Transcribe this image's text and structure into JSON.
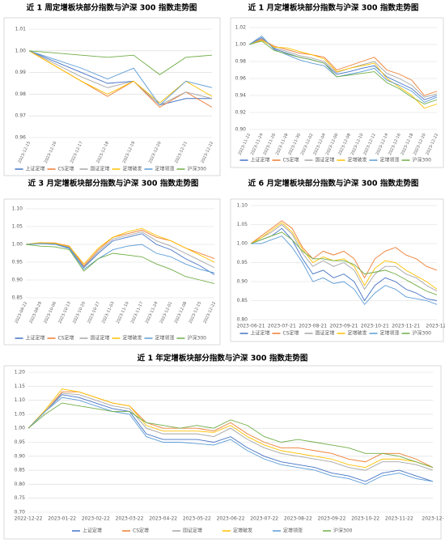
{
  "chart_data": [
    {
      "type": "line",
      "title": "近 1 周定增板块部分指数与沪深 300 指数走势图",
      "categories": [
        "2023-12-15",
        "2023-12-16",
        "2023-12-17",
        "2023-12-18",
        "2023-12-19",
        "2023-12-20",
        "2023-12-21",
        "2023-12-22"
      ],
      "ylim": [
        0.96,
        1.01
      ],
      "yticks": [
        0.96,
        0.97,
        0.98,
        0.99,
        {
          "value": 1,
          "label": "1.00"
        },
        1.01
      ],
      "grid": true,
      "series": [
        {
          "name": "上证定增",
          "color": "#4472c4",
          "values": [
            1.0,
            0.995,
            0.99,
            0.985,
            0.986,
            0.975,
            0.978,
            0.978
          ]
        },
        {
          "name": "CS定增",
          "color": "#ed7d31",
          "values": [
            1.0,
            0.993,
            0.986,
            0.979,
            0.986,
            0.974,
            0.981,
            0.974
          ]
        },
        {
          "name": "国证定增",
          "color": "#a5a5a5",
          "values": [
            1.0,
            0.994,
            0.988,
            0.983,
            0.986,
            0.975,
            0.981,
            0.978
          ]
        },
        {
          "name": "定增破发",
          "color": "#ffc000",
          "values": [
            1.0,
            0.993,
            0.986,
            0.98,
            0.986,
            0.976,
            0.986,
            0.979
          ]
        },
        {
          "name": "定增领涨",
          "color": "#5b9bd5",
          "values": [
            1.0,
            0.996,
            0.992,
            0.987,
            0.992,
            0.975,
            0.986,
            0.983
          ]
        },
        {
          "name": "沪深300",
          "color": "#70ad47",
          "values": [
            1.0,
            0.999,
            0.998,
            0.997,
            0.998,
            0.989,
            0.997,
            0.998
          ]
        }
      ]
    },
    {
      "type": "line",
      "title": "近 1 月定增板块部分指数与沪深 300 指数走势图",
      "categories": [
        "2023-11-22",
        "2023-11-24",
        "2023-11-26",
        "2023-11-28",
        "2023-11-30",
        "2023-12-02",
        "2023-12-04",
        "2023-12-06",
        "2023-12-08",
        "2023-12-10",
        "2023-12-12",
        "2023-12-14",
        "2023-12-16",
        "2023-12-18",
        "2023-12-20",
        "2023-12-22"
      ],
      "ylim": [
        0.9,
        1.02
      ],
      "yticks": [
        {
          "value": 0.9,
          "label": "0.90"
        },
        0.92,
        0.94,
        0.96,
        0.98,
        {
          "value": 1,
          "label": "1.00"
        },
        1.02
      ],
      "grid": true,
      "series": [
        {
          "name": "上证定增",
          "color": "#4472c4",
          "values": [
            1.0,
            1.008,
            0.995,
            0.99,
            0.985,
            0.982,
            0.978,
            0.965,
            0.968,
            0.972,
            0.975,
            0.962,
            0.955,
            0.948,
            0.935,
            0.94
          ]
        },
        {
          "name": "CS定增",
          "color": "#ed7d31",
          "values": [
            1.0,
            1.006,
            0.998,
            0.994,
            0.99,
            0.988,
            0.985,
            0.97,
            0.975,
            0.98,
            0.985,
            0.97,
            0.965,
            0.958,
            0.94,
            0.945
          ]
        },
        {
          "name": "国证定增",
          "color": "#a5a5a5",
          "values": [
            1.0,
            1.007,
            0.996,
            0.992,
            0.987,
            0.984,
            0.98,
            0.967,
            0.972,
            0.976,
            0.98,
            0.966,
            0.96,
            0.952,
            0.938,
            0.942
          ]
        },
        {
          "name": "定增破发",
          "color": "#ffc000",
          "values": [
            1.0,
            1.005,
            0.997,
            0.996,
            0.992,
            0.988,
            0.983,
            0.968,
            0.972,
            0.975,
            0.978,
            0.96,
            0.95,
            0.94,
            0.925,
            0.93
          ]
        },
        {
          "name": "定增领涨",
          "color": "#5b9bd5",
          "values": [
            1.0,
            1.01,
            0.994,
            0.988,
            0.982,
            0.978,
            0.975,
            0.962,
            0.965,
            0.968,
            0.972,
            0.958,
            0.952,
            0.945,
            0.932,
            0.938
          ]
        },
        {
          "name": "沪深300",
          "color": "#70ad47",
          "values": [
            1.0,
            1.004,
            0.993,
            0.989,
            0.985,
            0.982,
            0.978,
            0.962,
            0.964,
            0.966,
            0.968,
            0.955,
            0.948,
            0.938,
            0.93,
            0.935
          ]
        }
      ]
    },
    {
      "type": "line",
      "title": "近 3 月定增板块部分指数与沪深 300 指数走势图",
      "categories": [
        "2023-09-22",
        "2023-09-29",
        "2023-10-06",
        "2023-10-13",
        "2023-10-20",
        "2023-10-27",
        "2023-11-03",
        "2023-11-10",
        "2023-11-17",
        "2023-11-24",
        "2023-12-01",
        "2023-12-08",
        "2023-12-15",
        "2023-12-22"
      ],
      "ylim": [
        0.85,
        1.1
      ],
      "yticks": [
        0.85,
        {
          "value": 0.9,
          "label": "0.90"
        },
        0.95,
        {
          "value": 1,
          "label": "1.00"
        },
        1.05,
        {
          "value": 1.1,
          "label": "1.10"
        }
      ],
      "grid": true,
      "series": [
        {
          "name": "上证定增",
          "color": "#4472c4",
          "values": [
            1.0,
            1.003,
            1.002,
            0.99,
            0.935,
            0.975,
            1.01,
            1.02,
            1.03,
            1.0,
            0.985,
            0.96,
            0.94,
            0.915
          ]
        },
        {
          "name": "CS定增",
          "color": "#ed7d31",
          "values": [
            1.0,
            1.005,
            1.004,
            0.995,
            0.94,
            0.985,
            1.02,
            1.03,
            1.04,
            1.02,
            1.01,
            0.99,
            0.975,
            0.96
          ]
        },
        {
          "name": "国证定增",
          "color": "#a5a5a5",
          "values": [
            1.0,
            1.004,
            1.003,
            0.992,
            0.937,
            0.98,
            1.015,
            1.025,
            1.035,
            1.01,
            0.995,
            0.975,
            0.955,
            0.935
          ]
        },
        {
          "name": "定增破发",
          "color": "#ffc000",
          "values": [
            1.0,
            1.005,
            1.003,
            0.994,
            0.945,
            0.99,
            1.02,
            1.035,
            1.045,
            1.025,
            1.01,
            0.99,
            0.97,
            0.95
          ]
        },
        {
          "name": "定增领涨",
          "color": "#5b9bd5",
          "values": [
            1.0,
            1.002,
            1.0,
            0.988,
            0.93,
            0.96,
            0.985,
            0.995,
            1.0,
            0.975,
            0.965,
            0.945,
            0.93,
            0.92
          ]
        },
        {
          "name": "沪深300",
          "color": "#70ad47",
          "values": [
            1.0,
            0.995,
            0.993,
            0.985,
            0.925,
            0.96,
            0.975,
            0.97,
            0.965,
            0.945,
            0.93,
            0.91,
            0.9,
            0.89
          ]
        }
      ]
    },
    {
      "type": "line",
      "title": "近 6 月定增板块部分指数与沪深 300 指数走势图",
      "categories": [
        "2023-06-21",
        null,
        null,
        "2023-07-21",
        null,
        null,
        "2023-08-21",
        null,
        null,
        "2023-09-21",
        null,
        null,
        "2023-10-21",
        null,
        null,
        "2023-11-21",
        null,
        null,
        "2023-12-"
      ],
      "ylim": [
        0.8,
        1.1
      ],
      "yticks": [
        {
          "value": 0.8,
          "label": "0.80"
        },
        0.85,
        {
          "value": 0.9,
          "label": "0.90"
        },
        0.95,
        {
          "value": 1,
          "label": "1.00"
        },
        1.05,
        {
          "value": 1.1,
          "label": "1.10"
        }
      ],
      "grid": true,
      "series": [
        {
          "name": "上证定增",
          "color": "#4472c4",
          "values": [
            1.0,
            1.01,
            1.02,
            1.04,
            1.01,
            0.96,
            0.92,
            0.93,
            0.91,
            0.92,
            0.9,
            0.85,
            0.89,
            0.91,
            0.9,
            0.88,
            0.87,
            0.855,
            0.85
          ]
        },
        {
          "name": "CS定增",
          "color": "#ed7d31",
          "values": [
            1.0,
            1.02,
            1.04,
            1.06,
            1.04,
            0.99,
            0.96,
            0.98,
            0.97,
            0.98,
            0.96,
            0.91,
            0.96,
            0.98,
            0.99,
            0.97,
            0.96,
            0.94,
            0.93
          ]
        },
        {
          "name": "国证定增",
          "color": "#a5a5a5",
          "values": [
            1.0,
            1.015,
            1.03,
            1.05,
            1.025,
            0.975,
            0.94,
            0.955,
            0.94,
            0.95,
            0.93,
            0.88,
            0.92,
            0.94,
            0.94,
            0.92,
            0.91,
            0.89,
            0.875
          ]
        },
        {
          "name": "定增破发",
          "color": "#ffc000",
          "values": [
            1.0,
            1.015,
            1.035,
            1.055,
            1.03,
            0.985,
            0.95,
            0.965,
            0.955,
            0.96,
            0.94,
            0.89,
            0.935,
            0.955,
            0.95,
            0.93,
            0.915,
            0.9,
            0.88
          ]
        },
        {
          "name": "定增领涨",
          "color": "#5b9bd5",
          "values": [
            1.0,
            1.0,
            1.01,
            1.02,
            0.99,
            0.95,
            0.9,
            0.91,
            0.895,
            0.9,
            0.88,
            0.84,
            0.87,
            0.89,
            0.88,
            0.86,
            0.855,
            0.85,
            0.84
          ]
        },
        {
          "name": "沪深300",
          "color": "#70ad47",
          "values": [
            1.0,
            1.01,
            1.02,
            1.03,
            1.01,
            0.98,
            0.96,
            0.96,
            0.955,
            0.955,
            0.945,
            0.92,
            0.925,
            0.93,
            0.92,
            0.905,
            0.89,
            0.875,
            0.865
          ]
        }
      ]
    },
    {
      "type": "line",
      "title": "近 1 年定增板块部分指数与沪深 300 指数走势图",
      "categories": [
        "2022-12-22",
        null,
        "2023-01-22",
        null,
        "2023-02-22",
        null,
        "2023-03-22",
        null,
        "2023-04-22",
        null,
        "2023-05-22",
        null,
        "2023-06-22",
        null,
        "2023-07-22",
        null,
        "2023-08-22",
        null,
        "2023-09-22",
        null,
        "2023-10-22",
        null,
        "2023-11-22",
        null,
        "2023-12-"
      ],
      "ylim": [
        0.7,
        1.2
      ],
      "yticks": [
        {
          "value": 0.7,
          "label": "0.70"
        },
        0.75,
        {
          "value": 0.8,
          "label": "0.80"
        },
        0.85,
        {
          "value": 0.9,
          "label": "0.90"
        },
        0.95,
        {
          "value": 1,
          "label": "1.00"
        },
        1.05,
        {
          "value": 1.1,
          "label": "1.10"
        },
        1.15,
        {
          "value": 1.2,
          "label": "1.20"
        }
      ],
      "grid": true,
      "series": [
        {
          "name": "上证定增",
          "color": "#4472c4",
          "values": [
            1.0,
            1.06,
            1.12,
            1.11,
            1.09,
            1.07,
            1.06,
            0.98,
            0.96,
            0.96,
            0.96,
            0.95,
            0.97,
            0.93,
            0.9,
            0.88,
            0.87,
            0.86,
            0.84,
            0.83,
            0.81,
            0.84,
            0.85,
            0.83,
            0.81
          ]
        },
        {
          "name": "CS定增",
          "color": "#ed7d31",
          "values": [
            1.0,
            1.06,
            1.13,
            1.13,
            1.11,
            1.09,
            1.08,
            1.02,
            1.0,
            1.0,
            1.0,
            0.99,
            1.02,
            0.98,
            0.95,
            0.93,
            0.93,
            0.92,
            0.91,
            0.89,
            0.88,
            0.91,
            0.91,
            0.89,
            0.86
          ]
        },
        {
          "name": "国证定增",
          "color": "#a5a5a5",
          "values": [
            1.0,
            1.06,
            1.125,
            1.12,
            1.1,
            1.08,
            1.07,
            1.0,
            0.98,
            0.98,
            0.98,
            0.97,
            1.0,
            0.96,
            0.93,
            0.91,
            0.9,
            0.89,
            0.88,
            0.86,
            0.85,
            0.88,
            0.88,
            0.87,
            0.85
          ]
        },
        {
          "name": "定增破发",
          "color": "#ffc000",
          "values": [
            1.0,
            1.065,
            1.14,
            1.13,
            1.11,
            1.09,
            1.08,
            1.01,
            0.99,
            0.99,
            0.99,
            0.985,
            1.01,
            0.97,
            0.94,
            0.92,
            0.91,
            0.9,
            0.89,
            0.87,
            0.86,
            0.89,
            0.89,
            0.88,
            0.86
          ]
        },
        {
          "name": "定增领涨",
          "color": "#5b9bd5",
          "values": [
            1.0,
            1.06,
            1.11,
            1.1,
            1.08,
            1.06,
            1.05,
            0.97,
            0.95,
            0.95,
            0.945,
            0.94,
            0.96,
            0.92,
            0.89,
            0.87,
            0.86,
            0.85,
            0.83,
            0.82,
            0.8,
            0.83,
            0.84,
            0.82,
            0.81
          ]
        },
        {
          "name": "沪深300",
          "color": "#70ad47",
          "values": [
            1.0,
            1.05,
            1.09,
            1.08,
            1.07,
            1.06,
            1.06,
            1.02,
            1.01,
            1.0,
            1.01,
            1.0,
            1.03,
            1.01,
            0.97,
            0.95,
            0.96,
            0.95,
            0.94,
            0.93,
            0.91,
            0.91,
            0.9,
            0.88,
            0.86
          ]
        }
      ]
    }
  ]
}
